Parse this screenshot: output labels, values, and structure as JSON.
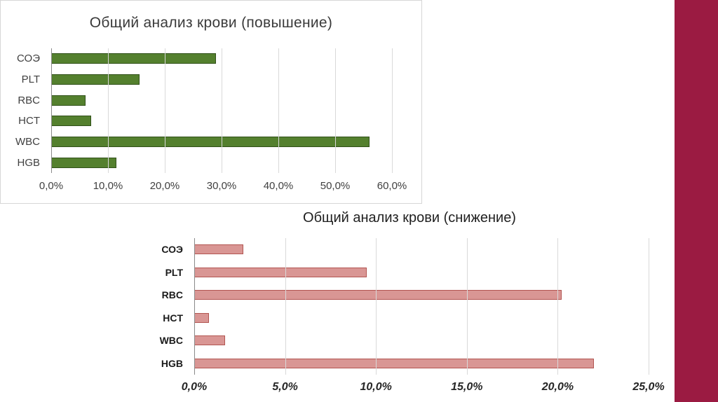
{
  "page": {
    "accent_stripe_color": "#9b1b42",
    "background_color": "#ffffff"
  },
  "chart_data": [
    {
      "type": "bar",
      "orientation": "horizontal",
      "title": "Общий анализ крови (повышение)",
      "categories": [
        "СОЭ",
        "PLT",
        "RBC",
        "HCT",
        "WBC",
        "HGB"
      ],
      "values": [
        29.0,
        15.5,
        6.0,
        7.0,
        56.0,
        11.5
      ],
      "xlim": [
        0,
        60
      ],
      "ticks": [
        {
          "value": 0,
          "label": "0,0%"
        },
        {
          "value": 10,
          "label": "10,0%"
        },
        {
          "value": 20,
          "label": "20,0%"
        },
        {
          "value": 30,
          "label": "30,0%"
        },
        {
          "value": 40,
          "label": "40,0%"
        },
        {
          "value": 50,
          "label": "50,0%"
        },
        {
          "value": 60,
          "label": "60,0%"
        }
      ],
      "grid": "vertical",
      "legend": "none",
      "bar_color": "#54802e",
      "bar_border_color": "#31511a"
    },
    {
      "type": "bar",
      "orientation": "horizontal",
      "title": "Общий анализ крови (снижение)",
      "categories": [
        "СОЭ",
        "PLT",
        "RBC",
        "HCT",
        "WBC",
        "HGB"
      ],
      "values": [
        2.7,
        9.5,
        20.2,
        0.8,
        1.7,
        22.0
      ],
      "xlim": [
        0,
        25
      ],
      "ticks": [
        {
          "value": 0,
          "label": "0,0%"
        },
        {
          "value": 5,
          "label": "5,0%"
        },
        {
          "value": 10,
          "label": "10,0%"
        },
        {
          "value": 15,
          "label": "15,0%"
        },
        {
          "value": 20,
          "label": "20,0%"
        },
        {
          "value": 25,
          "label": "25,0%"
        }
      ],
      "grid": "vertical",
      "legend": "none",
      "bar_color": "#d99694",
      "bar_border_color": "#b25551"
    }
  ]
}
